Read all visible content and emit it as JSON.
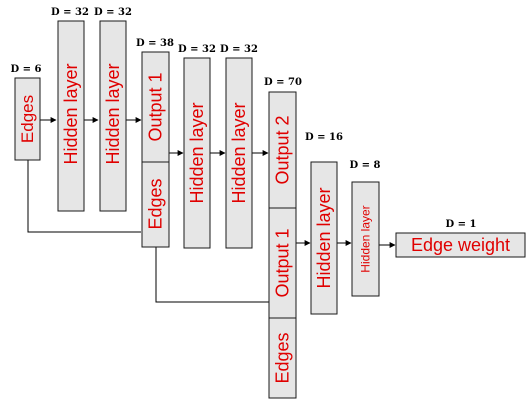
{
  "colors": {
    "box_fill": "#e6e6e6",
    "box_stroke": "#1a1a1a",
    "label_text": "#e00000",
    "dim_text": "#000000",
    "connector": "#000000"
  },
  "diagram": {
    "edges_input": {
      "dim": "D = 6",
      "label": "Edges"
    },
    "stage1": [
      {
        "dim": "D = 32",
        "label": "Hidden layer"
      },
      {
        "dim": "D = 32",
        "label": "Hidden layer"
      }
    ],
    "concat1": {
      "dim": "D = 38",
      "top_label": "Output 1",
      "bottom_label": "Edges"
    },
    "stage2": [
      {
        "dim": "D = 32",
        "label": "Hidden layer"
      },
      {
        "dim": "D = 32",
        "label": "Hidden layer"
      }
    ],
    "concat2": {
      "dim": "D = 70",
      "top_label": "Output 2",
      "mid_label": "Output 1",
      "bottom_label": "Edges"
    },
    "stage3": [
      {
        "dim": "D = 16",
        "label": "Hidden layer"
      },
      {
        "dim": "D = 8",
        "label": "Hidden layer"
      }
    ],
    "output": {
      "dim": "D = 1",
      "label": "Edge weight"
    }
  }
}
